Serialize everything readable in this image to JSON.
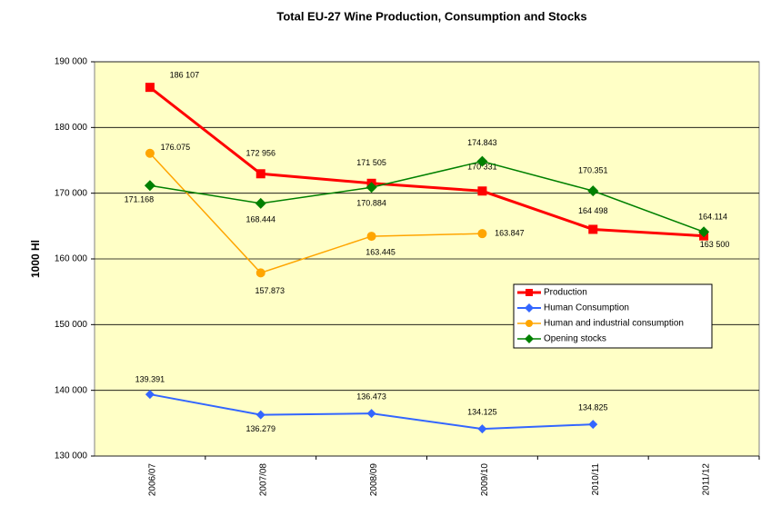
{
  "chart_data": {
    "type": "line",
    "title": "Total EU-27 Wine Production, Consumption and Stocks",
    "y_label": "1000 Hl",
    "categories": [
      "2006/07",
      "2007/08",
      "2008/09",
      "2009/10",
      "2010/11",
      "2011/12"
    ],
    "series": [
      {
        "name": "Production",
        "color": "#ff0000",
        "marker": "square",
        "values": [
          186107,
          172956,
          171505,
          170331,
          164498,
          163500
        ],
        "value_labels": [
          "186 107",
          "172 956",
          "171 505",
          "170 331",
          "164 498",
          "163 500"
        ]
      },
      {
        "name": "Human Consumption",
        "color": "#3366ff",
        "marker": "diamond",
        "values": [
          139391,
          136279,
          136473,
          134125,
          134825,
          null
        ],
        "value_labels": [
          "139.391",
          "136.279",
          "136.473",
          "134.125",
          "134.825",
          null
        ]
      },
      {
        "name": "Human and industrial consumption",
        "color": "#ffa500",
        "marker": "circle",
        "values": [
          176075,
          157873,
          163445,
          163847,
          null,
          null
        ],
        "value_labels": [
          "176.075",
          "157.873",
          "163.445",
          "163.847",
          null,
          null
        ]
      },
      {
        "name": "Opening stocks",
        "color": "#008000",
        "marker": "diamond",
        "values": [
          171168,
          168444,
          170884,
          174843,
          170351,
          164114
        ],
        "value_labels": [
          "171.168",
          "168.444",
          "170.884",
          "174.843",
          "170.351",
          "164.114"
        ]
      }
    ],
    "ylim": [
      130000,
      190000
    ],
    "yticks": [
      {
        "value": 130000,
        "label": "130 000"
      },
      {
        "value": 140000,
        "label": "140 000"
      },
      {
        "value": 150000,
        "label": "150 000"
      },
      {
        "value": 160000,
        "label": "160 000"
      },
      {
        "value": 170000,
        "label": "170 000"
      },
      {
        "value": 180000,
        "label": "180 000"
      },
      {
        "value": 190000,
        "label": "190 000"
      }
    ],
    "grid": true,
    "legend": "right"
  }
}
